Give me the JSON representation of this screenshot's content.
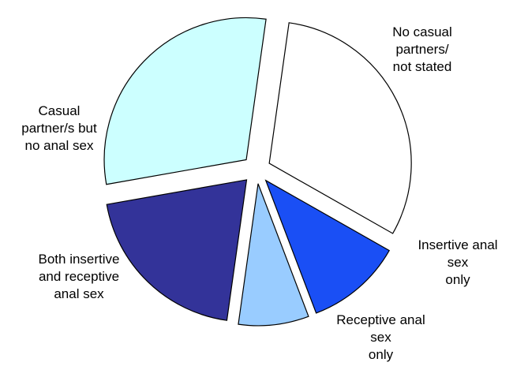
{
  "chart_data": {
    "type": "pie",
    "title": "",
    "exploded": true,
    "outline_color": "#000000",
    "slices": [
      {
        "label": "No casual\npartners/\nnot stated",
        "value": 31,
        "color": "#ffffff"
      },
      {
        "label": "Insertive anal\nsex\nonly",
        "value": 11,
        "color": "#1a4ff5"
      },
      {
        "label": "Receptive anal\nsex\nonly",
        "value": 8,
        "color": "#99ccff"
      },
      {
        "label": "Both insertive\nand receptive\nanal sex",
        "value": 20,
        "color": "#333399"
      },
      {
        "label": "Casual\npartner/s but\nno anal sex",
        "value": 30,
        "color": "#ccffff"
      }
    ]
  }
}
